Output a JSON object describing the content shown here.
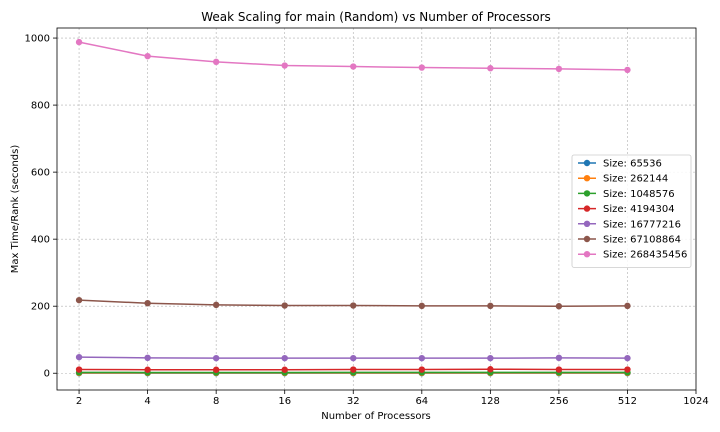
{
  "chart_data": {
    "type": "line",
    "title": "Weak Scaling for main (Random) vs Number of Processors",
    "xlabel": "Number of Processors",
    "ylabel": "Max Time/Rank (seconds)",
    "x": [
      2,
      4,
      8,
      16,
      32,
      64,
      128,
      256,
      512
    ],
    "x_ticks": [
      "2",
      "4",
      "8",
      "16",
      "32",
      "64",
      "128",
      "256",
      "512",
      "1024"
    ],
    "x_scale": "log2",
    "xlim": [
      1.6,
      1024
    ],
    "ylim": [
      -50,
      1030
    ],
    "y_ticks": [
      0,
      200,
      400,
      600,
      800,
      1000
    ],
    "grid": true,
    "legend_position": "center-right",
    "series": [
      {
        "name": "Size: 65536",
        "color": "#1f77b4",
        "values": [
          0.3,
          0.3,
          0.3,
          0.3,
          0.3,
          0.3,
          0.3,
          0.3,
          0.3
        ]
      },
      {
        "name": "Size: 262144",
        "color": "#ff7f0e",
        "values": [
          1.0,
          1.0,
          1.0,
          1.0,
          1.0,
          1.0,
          1.0,
          1.0,
          1.0
        ]
      },
      {
        "name": "Size: 1048576",
        "color": "#2ca02c",
        "values": [
          2.5,
          2.4,
          2.4,
          2.4,
          2.5,
          2.5,
          2.6,
          2.5,
          2.5
        ]
      },
      {
        "name": "Size: 4194304",
        "color": "#d62728",
        "values": [
          11,
          10.5,
          10.5,
          10.5,
          11,
          11,
          12,
          11,
          11
        ]
      },
      {
        "name": "Size: 16777216",
        "color": "#9467bd",
        "values": [
          48,
          46,
          45,
          45,
          45,
          45,
          45,
          46,
          45
        ]
      },
      {
        "name": "Size: 67108864",
        "color": "#8c564b",
        "values": [
          218,
          209,
          204,
          202,
          202,
          201,
          201,
          200,
          201
        ]
      },
      {
        "name": "Size: 268435456",
        "color": "#e377c2",
        "values": [
          988,
          946,
          929,
          918,
          915,
          912,
          910,
          908,
          905
        ]
      }
    ]
  }
}
